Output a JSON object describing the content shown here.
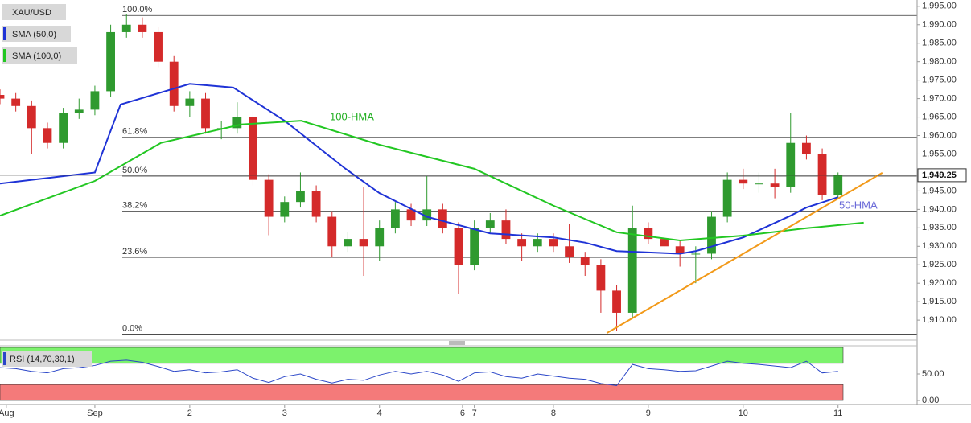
{
  "chart_data": {
    "type": "candlestick",
    "symbol": "XAU/USD",
    "xlim": [
      0,
      232
    ],
    "xticks": [
      {
        "value": 1.6,
        "label": "Aug"
      },
      {
        "value": 24,
        "label": "Sep"
      },
      {
        "value": 48,
        "label": "2"
      },
      {
        "value": 72,
        "label": "3"
      },
      {
        "value": 96,
        "label": "4"
      },
      {
        "value": 117,
        "label": "6"
      },
      {
        "value": 120,
        "label": "7"
      },
      {
        "value": 140,
        "label": "8"
      },
      {
        "value": 164,
        "label": "9"
      },
      {
        "value": 188,
        "label": "10"
      },
      {
        "value": 212,
        "label": "11"
      }
    ],
    "ylim": [
      1904.8,
      1996.7
    ],
    "yticks": [
      {
        "value": 1910,
        "label": "1,910.00"
      },
      {
        "value": 1915,
        "label": "1,915.00"
      },
      {
        "value": 1920,
        "label": "1,920.00"
      },
      {
        "value": 1925,
        "label": "1,925.00"
      },
      {
        "value": 1930,
        "label": "1,930.00"
      },
      {
        "value": 1935,
        "label": "1,935.00"
      },
      {
        "value": 1940,
        "label": "1,940.00"
      },
      {
        "value": 1945,
        "label": "1,945.00"
      },
      {
        "value": 1950,
        "label": "1,950.00"
      },
      {
        "value": 1955,
        "label": "1,955.00"
      },
      {
        "value": 1960,
        "label": "1,960.00"
      },
      {
        "value": 1965,
        "label": "1,965.00"
      },
      {
        "value": 1970,
        "label": "1,970.00"
      },
      {
        "value": 1975,
        "label": "1,975.00"
      },
      {
        "value": 1980,
        "label": "1,980.00"
      },
      {
        "value": 1985,
        "label": "1,985.00"
      },
      {
        "value": 1990,
        "label": "1,990.00"
      },
      {
        "value": 1995,
        "label": "1,995.00"
      }
    ],
    "up_color": "#2f9a2f",
    "down_color": "#d42a2a",
    "candles": {
      "x": [
        0,
        4,
        8,
        12,
        16,
        20,
        24,
        28,
        32,
        36,
        40,
        44,
        48,
        52,
        56,
        60,
        64,
        68,
        72,
        76,
        80,
        84,
        88,
        92,
        96,
        100,
        104,
        108,
        112,
        116,
        120,
        124,
        128,
        132,
        136,
        140,
        144,
        148,
        152,
        156,
        160,
        164,
        168,
        172,
        176,
        180,
        184,
        188,
        192,
        196,
        200,
        204,
        208,
        212
      ],
      "open": [
        1971,
        1970,
        1968,
        1962,
        1958,
        1966,
        1967,
        1972,
        1988,
        1990,
        1988,
        1980,
        1968,
        1970,
        1962,
        1962,
        1965,
        1948,
        1938,
        1942,
        1945,
        1938,
        1930,
        1932,
        1930,
        1935,
        1940,
        1937,
        1940,
        1935,
        1925,
        1935,
        1937,
        1932,
        1930,
        1932,
        1930,
        1927,
        1925,
        1918,
        1912,
        1935,
        1932,
        1930,
        1928,
        1928,
        1938,
        1948,
        1947,
        1947,
        1946,
        1958,
        1955,
        1944
      ],
      "high": [
        1972.5,
        1971.5,
        1969.5,
        1963.5,
        1967.5,
        1970,
        1973.5,
        1990,
        1993,
        1992,
        1989.5,
        1981.5,
        1972,
        1971.5,
        1964,
        1969,
        1966.5,
        1949.5,
        1943.5,
        1950,
        1946.5,
        1939.5,
        1934,
        1946,
        1937,
        1942,
        1941.5,
        1949,
        1941.5,
        1936.5,
        1937,
        1939,
        1940,
        1933.5,
        1933.5,
        1933.5,
        1936,
        1928.5,
        1926.5,
        1919.5,
        1941,
        1936.5,
        1933.5,
        1931.5,
        1930,
        1939.5,
        1950,
        1951,
        1950,
        1951,
        1966,
        1960,
        1956.5,
        1950
      ],
      "low": [
        1968.5,
        1966.5,
        1955,
        1956.5,
        1956.5,
        1964.5,
        1965.5,
        1970.5,
        1986.5,
        1986.5,
        1978.5,
        1966.5,
        1965,
        1960.5,
        1959,
        1960.5,
        1946.5,
        1933,
        1936.5,
        1940.5,
        1936.5,
        1927,
        1928.5,
        1922,
        1926,
        1933.5,
        1935.5,
        1935.5,
        1933.5,
        1917,
        1923.5,
        1933.5,
        1930.5,
        1926,
        1928.5,
        1928.5,
        1925.5,
        1922,
        1912,
        1907,
        1910.5,
        1930.5,
        1928.5,
        1924.5,
        1920,
        1926.5,
        1936.5,
        1945.5,
        1944.5,
        1943,
        1944.5,
        1953.5,
        1942.5,
        1943
      ],
      "close": [
        1970,
        1968,
        1962,
        1958,
        1966,
        1967,
        1972,
        1988,
        1990,
        1988,
        1980,
        1968,
        1970,
        1962,
        1962,
        1965,
        1948,
        1938,
        1942,
        1945,
        1938,
        1930,
        1932,
        1930,
        1935,
        1940,
        1937,
        1940,
        1935,
        1925,
        1935,
        1937,
        1932,
        1930,
        1932,
        1930,
        1927,
        1925,
        1918,
        1912,
        1935,
        1932,
        1930,
        1928,
        1928,
        1938,
        1948,
        1947,
        1947,
        1946,
        1958,
        1955,
        1944,
        1949.25
      ]
    },
    "series": [
      {
        "name": "SMA (50,0)",
        "color": "#1f33d6",
        "x": [
          0,
          24,
          30.5,
          48,
          59,
          72,
          87.4,
          96,
          108,
          124,
          140,
          148,
          156,
          172,
          176,
          188,
          200,
          204,
          212
        ],
        "values": [
          1947,
          1950,
          1968.4,
          1974,
          1973,
          1964,
          1951,
          1944.4,
          1938,
          1933.5,
          1932.4,
          1931,
          1928.7,
          1928,
          1928.7,
          1932.4,
          1938.3,
          1940.5,
          1943.3
        ]
      },
      {
        "name": "SMA (100,0)",
        "color": "#22c722",
        "x": [
          0,
          24,
          40.7,
          61,
          76.2,
          96,
          120,
          140,
          156,
          172,
          188,
          204,
          218.5
        ],
        "values": [
          1938.3,
          1947.7,
          1958,
          1963,
          1964,
          1957.5,
          1951,
          1941,
          1933.8,
          1931.6,
          1932.9,
          1934.9,
          1936.4
        ]
      }
    ],
    "fib_levels": [
      {
        "label": "100.0%",
        "value": 1992.5
      },
      {
        "label": "61.8%",
        "value": 1959.5
      },
      {
        "label": "50.0%",
        "value": 1949
      },
      {
        "label": "38.2%",
        "value": 1939.5
      },
      {
        "label": "23.6%",
        "value": 1927
      },
      {
        "label": "0.0%",
        "value": 1906.2
      }
    ],
    "trendline": {
      "color": "#f29a1a",
      "x": [
        153.5,
        223.2
      ],
      "values": [
        1906.5,
        1949.9
      ]
    },
    "annotations": [
      "100-HMA",
      "50-HMA"
    ],
    "last_price": 1949.25,
    "last_price_label": "1,949.25",
    "rsi": {
      "name": "RSI (14,70,30,1)",
      "color": "#2a46c8",
      "ylim": [
        0,
        100
      ],
      "yticks": [
        {
          "value": 0,
          "label": "0.00"
        },
        {
          "value": 50,
          "label": "50.00"
        }
      ],
      "overbought": 70,
      "oversold": 30,
      "values": [
        62,
        60,
        55,
        52,
        60,
        62,
        66,
        74,
        76,
        72,
        64,
        55,
        58,
        52,
        54,
        58,
        42,
        34,
        45,
        50,
        40,
        33,
        40,
        38,
        48,
        55,
        50,
        55,
        48,
        36,
        52,
        54,
        45,
        42,
        50,
        46,
        42,
        40,
        32,
        28,
        68,
        60,
        58,
        55,
        56,
        65,
        74,
        70,
        68,
        65,
        62,
        74,
        52,
        55
      ]
    }
  }
}
